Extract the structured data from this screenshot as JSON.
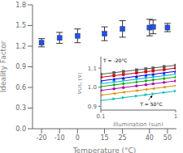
{
  "chart_data": [
    {
      "type": "scatter",
      "x": [
        -20,
        -10,
        0,
        15,
        25,
        40,
        42,
        50
      ],
      "series": [
        {
          "color": "#1f4fff",
          "marker": "square",
          "values": [
            1.25,
            1.32,
            1.35,
            1.38,
            1.45,
            1.47,
            1.48,
            1.47
          ],
          "errors": [
            0.06,
            0.08,
            0.1,
            0.1,
            0.12,
            0.12,
            0.1,
            0.06
          ]
        }
      ],
      "xlabel": "Temperature (°C)",
      "ylabel": "Ideality Factor",
      "xlim": [
        -25,
        55
      ],
      "xticks": [
        -20,
        -10,
        0,
        15,
        25,
        40,
        50
      ],
      "ylim": [
        0.0,
        1.8
      ],
      "yticks": [
        {
          "value": 0,
          "label": "0.0"
        },
        0.3,
        0.6,
        0.9,
        1.2,
        1.5,
        1.8
      ]
    },
    {
      "type": "line",
      "log": "x",
      "x": [
        0.1,
        0.15,
        0.2,
        0.3,
        0.4,
        0.5,
        0.7,
        1.0
      ],
      "xlabel": "Illumination (sun)",
      "ylabel": "VOC (V)",
      "xlim": [
        0.1,
        1.0
      ],
      "xticks": [
        0.1,
        1
      ],
      "ylim": [
        0.88,
        1.16
      ],
      "yticks": [
        0.9,
        {
          "value": 1,
          "label": "1.0"
        },
        1.1
      ],
      "annotations": [
        "T = -20°C",
        "T = 50°C"
      ],
      "series": [
        {
          "color": "#555555",
          "marker": "square",
          "values": [
            1.068,
            1.076276,
            1.082148,
            1.090425,
            1.096297,
            1.100852,
            1.10772,
            1.115
          ]
        },
        {
          "color": "#cc0000",
          "marker": "square",
          "values": [
            1.052,
            1.060452,
            1.066449,
            1.074902,
            1.080899,
            1.085551,
            1.092565,
            1.1
          ]
        },
        {
          "color": "#0000dd",
          "marker": "triangle-up",
          "values": [
            1.033,
            1.041805,
            1.048052,
            1.056856,
            1.063103,
            1.067949,
            1.075255,
            1.083
          ]
        },
        {
          "color": "#00aadd",
          "marker": "triangle-down",
          "values": [
            1.018,
            1.026805,
            1.033052,
            1.041856,
            1.048103,
            1.052949,
            1.060255,
            1.068
          ]
        },
        {
          "color": "#00aa00",
          "marker": "diamond",
          "values": [
            1.003,
            1.011805,
            1.018052,
            1.026856,
            1.033103,
            1.037949,
            1.045255,
            1.053
          ]
        },
        {
          "color": "#aa00aa",
          "marker": "circle",
          "values": [
            0.983,
            0.991805,
            0.998052,
            1.006856,
            1.013103,
            1.017949,
            1.025255,
            1.033
          ]
        },
        {
          "color": "#dd8800",
          "marker": "triangle-left",
          "values": [
            0.958,
            0.966805,
            0.973052,
            0.981856,
            0.988103,
            0.992949,
            1.000255,
            1.008
          ]
        },
        {
          "color": "#00bbbb",
          "marker": "triangle-right",
          "values": [
            0.93,
            0.938805,
            0.945052,
            0.953856,
            0.960103,
            0.964949,
            0.972255,
            0.98
          ]
        }
      ]
    }
  ]
}
